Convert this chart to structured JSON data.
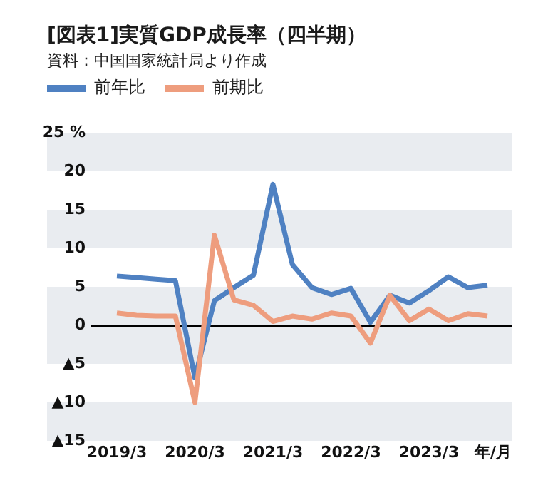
{
  "chart_data": {
    "type": "line",
    "title": "[図表1]実質GDP成長率（四半期）",
    "subtitle": "資料：中国国家統計局より作成",
    "xlabel": "年/月",
    "categories": [
      "2019/3",
      null,
      null,
      null,
      "2020/3",
      null,
      null,
      null,
      "2021/3",
      null,
      null,
      null,
      "2022/3",
      null,
      null,
      null,
      "2023/3",
      null,
      null,
      null
    ],
    "series": [
      {
        "name": "前年比",
        "color": "#4f81c2",
        "values": [
          6.4,
          6.2,
          6.0,
          5.8,
          -6.8,
          3.2,
          4.9,
          6.5,
          18.3,
          7.9,
          4.9,
          4.0,
          4.8,
          0.4,
          3.9,
          2.9,
          4.5,
          6.3,
          4.9,
          5.2
        ]
      },
      {
        "name": "前期比",
        "color": "#ee9d7e",
        "values": [
          1.6,
          1.3,
          1.2,
          1.2,
          -10.0,
          11.7,
          3.3,
          2.6,
          0.5,
          1.2,
          0.8,
          1.6,
          1.2,
          -2.3,
          3.9,
          0.6,
          2.1,
          0.6,
          1.5,
          1.2
        ]
      }
    ],
    "ylim": [
      -15,
      25
    ],
    "yticks": [
      {
        "value": -15,
        "label": "▲15"
      },
      {
        "value": -10,
        "label": "▲10"
      },
      {
        "value": -5,
        "label": "▲5"
      },
      0,
      5,
      10,
      15,
      20,
      {
        "value": 25,
        "label": "25 %"
      }
    ],
    "bands": [
      {
        "axis": "y",
        "from": 20,
        "to": 25,
        "color": "#e9ecf0"
      },
      {
        "axis": "y",
        "from": 10,
        "to": 15,
        "color": "#e9ecf0"
      },
      {
        "axis": "y",
        "from": -5,
        "to": 5,
        "color": "#e9ecf0"
      },
      {
        "axis": "y",
        "from": -15,
        "to": -10,
        "color": "#e9ecf0"
      }
    ],
    "ref_lines": [
      {
        "axis": "y",
        "value": 0,
        "color": "#000000"
      }
    ],
    "grid": false,
    "legend": "top left"
  }
}
